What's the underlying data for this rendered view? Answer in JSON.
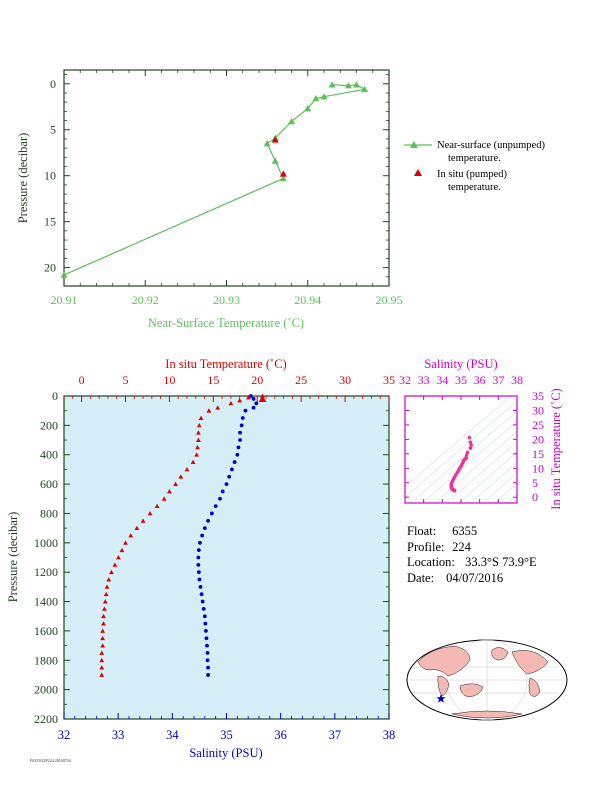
{
  "colors": {
    "near_surface": "#5cbf5c",
    "insitu_temp": "#dd0000",
    "salinity": "#0000cc",
    "salinity_axis": "#cc00cc",
    "bottom_bg": "#d5eef8",
    "axis_dark": "#224422"
  },
  "float_info": {
    "float_label": "Float:",
    "float": "6355",
    "profile_label": "Profile:",
    "profile": "224",
    "location_label": "Location:",
    "location": "33.3°S  73.9°E",
    "date_label": "Date:",
    "date": "04/07/2016"
  },
  "footnote": "F6355I24P224 20160704",
  "chart_data": [
    {
      "id": "top",
      "type": "line",
      "xlabel": "Near-Surface Temperature (˚C)",
      "ylabel": "Pressure (decibar)",
      "xlim": [
        20.91,
        20.95
      ],
      "ylim": [
        22,
        -1.5
      ],
      "x_ticks": [
        "20.91",
        "20.92",
        "20.93",
        "20.94",
        "20.95"
      ],
      "y_ticks": [
        "0",
        "5",
        "10",
        "15",
        "20"
      ],
      "legend": {
        "placement": "right",
        "near_surface_1": "Near-surface (unpumped)",
        "near_surface_2": "temperature.",
        "insitu_1": "In situ (pumped)",
        "insitu_2": "temperature."
      },
      "series": [
        {
          "name": "Near-surface (unpumped) temperature.",
          "marker": "triangle",
          "points": [
            [
              20.943,
              0.1
            ],
            [
              20.945,
              0.2
            ],
            [
              20.946,
              0.1
            ],
            [
              20.947,
              0.6
            ],
            [
              20.942,
              1.4
            ],
            [
              20.941,
              1.6
            ],
            [
              20.94,
              2.7
            ],
            [
              20.938,
              4.1
            ],
            [
              20.936,
              5.9
            ],
            [
              20.935,
              6.5
            ],
            [
              20.936,
              8.4
            ],
            [
              20.937,
              10.3
            ],
            [
              20.91,
              20.8
            ]
          ]
        },
        {
          "name": "In situ (pumped) temperature.",
          "marker": "triangle",
          "points": [
            [
              20.936,
              6.1
            ],
            [
              20.937,
              9.8
            ]
          ]
        }
      ]
    },
    {
      "id": "bottom",
      "type": "scatter",
      "top_label": "In situ Temperature (˚C)",
      "xlabel": "Salinity (PSU)",
      "ylabel": "Pressure (decibar)",
      "temp_lim": [
        -2,
        35
      ],
      "sal_lim": [
        32,
        38
      ],
      "ylim": [
        2200,
        0
      ],
      "temp_ticks": [
        "0",
        "5",
        "10",
        "15",
        "20",
        "25",
        "30",
        "35"
      ],
      "sal_ticks": [
        "32",
        "33",
        "34",
        "35",
        "36",
        "37",
        "38"
      ],
      "y_ticks": [
        "0",
        "200",
        "400",
        "600",
        "800",
        "1000",
        "1200",
        "1400",
        "1600",
        "1800",
        "2000",
        "2200"
      ],
      "temperature": [
        [
          20.6,
          0
        ],
        [
          19.0,
          10
        ],
        [
          18.0,
          30
        ],
        [
          17.0,
          50
        ],
        [
          15.5,
          80
        ],
        [
          14.5,
          100
        ],
        [
          13.6,
          150
        ],
        [
          13.4,
          200
        ],
        [
          13.3,
          250
        ],
        [
          13.3,
          300
        ],
        [
          13.2,
          350
        ],
        [
          13.1,
          400
        ],
        [
          12.7,
          450
        ],
        [
          12.0,
          500
        ],
        [
          11.3,
          550
        ],
        [
          10.7,
          600
        ],
        [
          10.0,
          650
        ],
        [
          9.4,
          700
        ],
        [
          8.6,
          750
        ],
        [
          7.8,
          800
        ],
        [
          7.0,
          850
        ],
        [
          6.3,
          900
        ],
        [
          5.6,
          950
        ],
        [
          5.0,
          1000
        ],
        [
          4.6,
          1050
        ],
        [
          4.2,
          1100
        ],
        [
          3.8,
          1150
        ],
        [
          3.4,
          1200
        ],
        [
          3.1,
          1250
        ],
        [
          2.9,
          1300
        ],
        [
          2.8,
          1350
        ],
        [
          2.7,
          1400
        ],
        [
          2.6,
          1450
        ],
        [
          2.5,
          1500
        ],
        [
          2.5,
          1550
        ],
        [
          2.4,
          1600
        ],
        [
          2.4,
          1650
        ],
        [
          2.4,
          1700
        ],
        [
          2.3,
          1750
        ],
        [
          2.3,
          1800
        ],
        [
          2.3,
          1850
        ],
        [
          2.3,
          1900
        ]
      ],
      "salinity": [
        [
          35.45,
          0
        ],
        [
          35.5,
          20
        ],
        [
          35.55,
          50
        ],
        [
          35.5,
          80
        ],
        [
          35.35,
          100
        ],
        [
          35.3,
          150
        ],
        [
          35.28,
          200
        ],
        [
          35.25,
          250
        ],
        [
          35.25,
          300
        ],
        [
          35.22,
          350
        ],
        [
          35.2,
          400
        ],
        [
          35.15,
          450
        ],
        [
          35.1,
          500
        ],
        [
          35.05,
          550
        ],
        [
          35.0,
          600
        ],
        [
          34.93,
          650
        ],
        [
          34.88,
          700
        ],
        [
          34.8,
          750
        ],
        [
          34.73,
          800
        ],
        [
          34.66,
          850
        ],
        [
          34.6,
          900
        ],
        [
          34.55,
          950
        ],
        [
          34.51,
          1000
        ],
        [
          34.49,
          1050
        ],
        [
          34.48,
          1100
        ],
        [
          34.48,
          1150
        ],
        [
          34.49,
          1200
        ],
        [
          34.5,
          1250
        ],
        [
          34.52,
          1300
        ],
        [
          34.54,
          1350
        ],
        [
          34.56,
          1400
        ],
        [
          34.58,
          1450
        ],
        [
          34.6,
          1500
        ],
        [
          34.61,
          1550
        ],
        [
          34.62,
          1600
        ],
        [
          34.63,
          1650
        ],
        [
          34.64,
          1700
        ],
        [
          34.65,
          1750
        ],
        [
          34.65,
          1800
        ],
        [
          34.66,
          1850
        ],
        [
          34.66,
          1900
        ]
      ]
    },
    {
      "id": "ts",
      "type": "scatter",
      "top_label": "Salinity (PSU)",
      "right_label": "In situ Temperature (˚C)",
      "xlim": [
        32,
        38
      ],
      "ylim": [
        -2,
        35
      ],
      "x_ticks": [
        "32",
        "33",
        "34",
        "35",
        "36",
        "37",
        "38"
      ],
      "y_ticks": [
        "0",
        "5",
        "10",
        "15",
        "20",
        "25",
        "30",
        "35"
      ],
      "points": [
        [
          35.45,
          20.6
        ],
        [
          35.5,
          19.0
        ],
        [
          35.55,
          18.0
        ],
        [
          35.5,
          17.0
        ],
        [
          35.35,
          15.5
        ],
        [
          35.3,
          14.5
        ],
        [
          35.28,
          13.6
        ],
        [
          35.25,
          13.4
        ],
        [
          35.25,
          13.3
        ],
        [
          35.22,
          13.2
        ],
        [
          35.2,
          13.1
        ],
        [
          35.15,
          12.7
        ],
        [
          35.1,
          12.0
        ],
        [
          35.05,
          11.3
        ],
        [
          35.0,
          10.7
        ],
        [
          34.93,
          10.0
        ],
        [
          34.88,
          9.4
        ],
        [
          34.8,
          8.6
        ],
        [
          34.73,
          7.8
        ],
        [
          34.66,
          7.0
        ],
        [
          34.6,
          6.3
        ],
        [
          34.55,
          5.6
        ],
        [
          34.51,
          5.0
        ],
        [
          34.49,
          4.6
        ],
        [
          34.48,
          4.2
        ],
        [
          34.48,
          3.8
        ],
        [
          34.49,
          3.4
        ],
        [
          34.5,
          3.1
        ],
        [
          34.52,
          2.9
        ],
        [
          34.54,
          2.8
        ],
        [
          34.56,
          2.7
        ],
        [
          34.58,
          2.6
        ],
        [
          34.6,
          2.5
        ],
        [
          34.62,
          2.4
        ],
        [
          34.64,
          2.4
        ],
        [
          34.65,
          2.3
        ],
        [
          34.66,
          2.3
        ]
      ]
    }
  ],
  "map": {
    "float_marker": "star-icon"
  }
}
